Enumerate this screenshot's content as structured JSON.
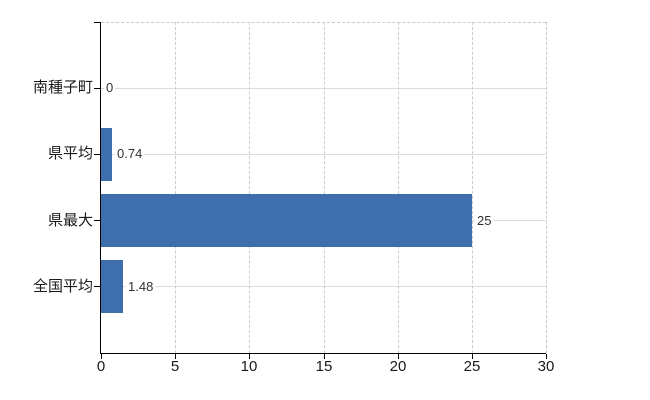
{
  "chart_data": {
    "type": "bar",
    "orientation": "horizontal",
    "title": "",
    "categories": [
      "南種子町",
      "県平均",
      "県最大",
      "全国平均"
    ],
    "values": [
      0,
      0.74,
      25,
      1.48
    ],
    "value_labels": [
      "0",
      "0.74",
      "25",
      "1.48"
    ],
    "xlim": [
      0,
      30
    ],
    "x_ticks": [
      0,
      5,
      10,
      15,
      20,
      25,
      30
    ],
    "x_tick_labels": [
      "0",
      "5",
      "10",
      "15",
      "20",
      "25",
      "30"
    ],
    "legend_position": "none",
    "colors": {
      "bar": "#3e6fac",
      "axis": "#000000",
      "vertical_grid": "#cccccc",
      "horizontal_grid": "#dcdcdc",
      "plot_border_dashed": "#c9c9c9",
      "tick_label_text": "#1a1a1a",
      "value_label_text": "#333333",
      "background": "#ffffff"
    },
    "grid": {
      "vertical_style": "dashed",
      "horizontal_style": "solid",
      "top_border": "dashed",
      "right_border": "dashed"
    }
  }
}
